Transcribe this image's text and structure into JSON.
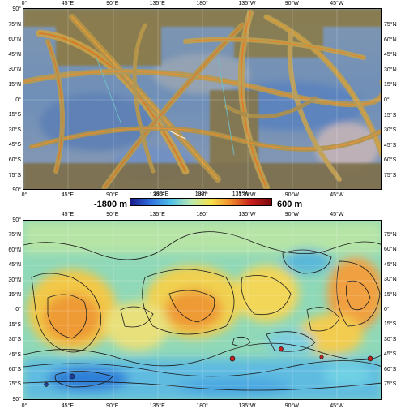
{
  "top_map": {
    "top_lon_labels": [
      "0°",
      "45°E",
      "90°E",
      "135°E",
      "180°",
      "135°W",
      "90°W",
      "45°W"
    ],
    "bottom_lon_labels": [
      "0°",
      "45°E",
      "90°E",
      "135°E",
      "180°",
      "135°W",
      "90°W",
      "45°W"
    ],
    "left_lat_labels": [
      "90°",
      "75°N",
      "60°N",
      "45°N",
      "30°N",
      "15°N",
      "0°",
      "15°S",
      "30°S",
      "45°S",
      "60°S",
      "75°S",
      "90°"
    ],
    "right_lat_labels": [
      "75°N",
      "60°N",
      "45°N",
      "30°N",
      "15°N",
      "0°",
      "15°S",
      "30°S",
      "45°S",
      "60°S",
      "75°S"
    ]
  },
  "colorbar": {
    "min_label": "-1800 m",
    "max_label": "600 m",
    "tick_labels": [
      "135°E",
      "180°",
      "135°W"
    ],
    "colors": [
      "#1a1a8c",
      "#2f6fe0",
      "#4fc0e8",
      "#b8e8b0",
      "#f4e24a",
      "#f08a2a",
      "#c81e1e",
      "#7a0a0a"
    ]
  },
  "bottom_map": {
    "top_lon_labels": [
      "45°E",
      "90°E",
      "135°E",
      "180°",
      "135°W",
      "90°W",
      "45°W"
    ],
    "bottom_lon_labels": [
      "0°",
      "45°E",
      "90°E",
      "135°E",
      "180°",
      "135°W",
      "90°W",
      "45°W"
    ],
    "left_lat_labels": [
      "90°",
      "75°N",
      "60°N",
      "45°N",
      "30°N",
      "15°N",
      "0°",
      "15°S",
      "30°S",
      "45°S",
      "60°S",
      "75°S",
      "90°"
    ],
    "right_lat_labels": [
      "75°N",
      "60°N",
      "45°N",
      "30°N",
      "15°N",
      "0°",
      "15°S",
      "30°S",
      "45°S",
      "60°S",
      "75°S"
    ]
  }
}
